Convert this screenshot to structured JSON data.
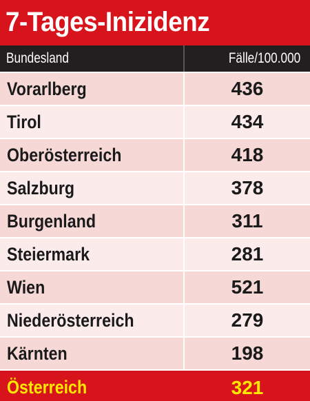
{
  "title": "7-Tages-Inizidenz",
  "colors": {
    "title_bg": "#d7141b",
    "header_bg": "#231f20",
    "row_odd_bg": "#f6d9d6",
    "row_even_bg": "#fbeceb",
    "total_bg": "#d7141b",
    "total_text": "#ffe800"
  },
  "chart_data": {
    "type": "table",
    "title": "7-Tages-Inizidenz",
    "columns": [
      "Bundesland",
      "Fälle/100.000"
    ],
    "rows": [
      {
        "name": "Vorarlberg",
        "value": "436"
      },
      {
        "name": "Tirol",
        "value": "434"
      },
      {
        "name": "Oberösterreich",
        "value": "418"
      },
      {
        "name": "Salzburg",
        "value": "378"
      },
      {
        "name": "Burgenland",
        "value": "311"
      },
      {
        "name": "Steiermark",
        "value": "281"
      },
      {
        "name": "Wien",
        "value": "521"
      },
      {
        "name": "Niederösterreich",
        "value": "279"
      },
      {
        "name": "Kärnten",
        "value": "198"
      }
    ],
    "total": {
      "name": "Österreich",
      "value": "321"
    }
  }
}
